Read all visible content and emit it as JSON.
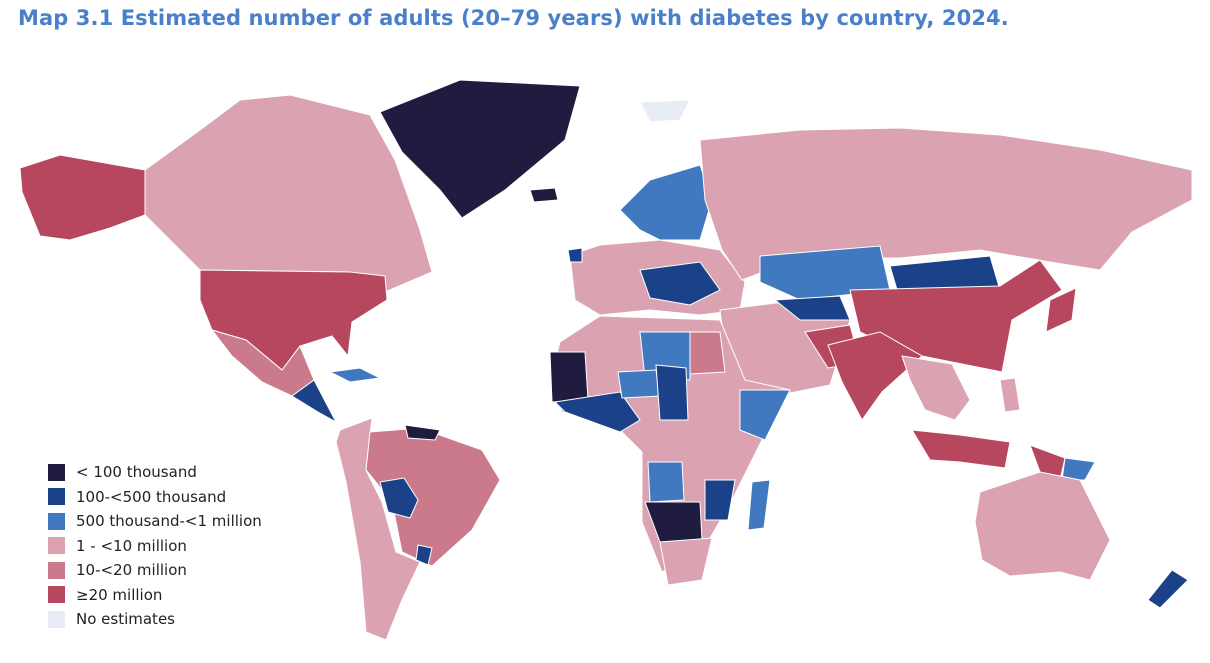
{
  "title": "Map 3.1 Estimated number of adults (20–79 years) with diabetes by country, 2024.",
  "legend": [
    {
      "label": "< 100 thousand",
      "color": "#1f1c3f"
    },
    {
      "label": "100-<500 thousand",
      "color": "#1b4288"
    },
    {
      "label": "500 thousand-<1 million",
      "color": "#4079c0"
    },
    {
      "label": "1 - <10 million",
      "color": "#dba3b1"
    },
    {
      "label": "10-<20 million",
      "color": "#cb7a8c"
    },
    {
      "label": "≥20 million",
      "color": "#b7475f"
    },
    {
      "label": "No estimates",
      "color": "#e8ecf4"
    }
  ]
}
